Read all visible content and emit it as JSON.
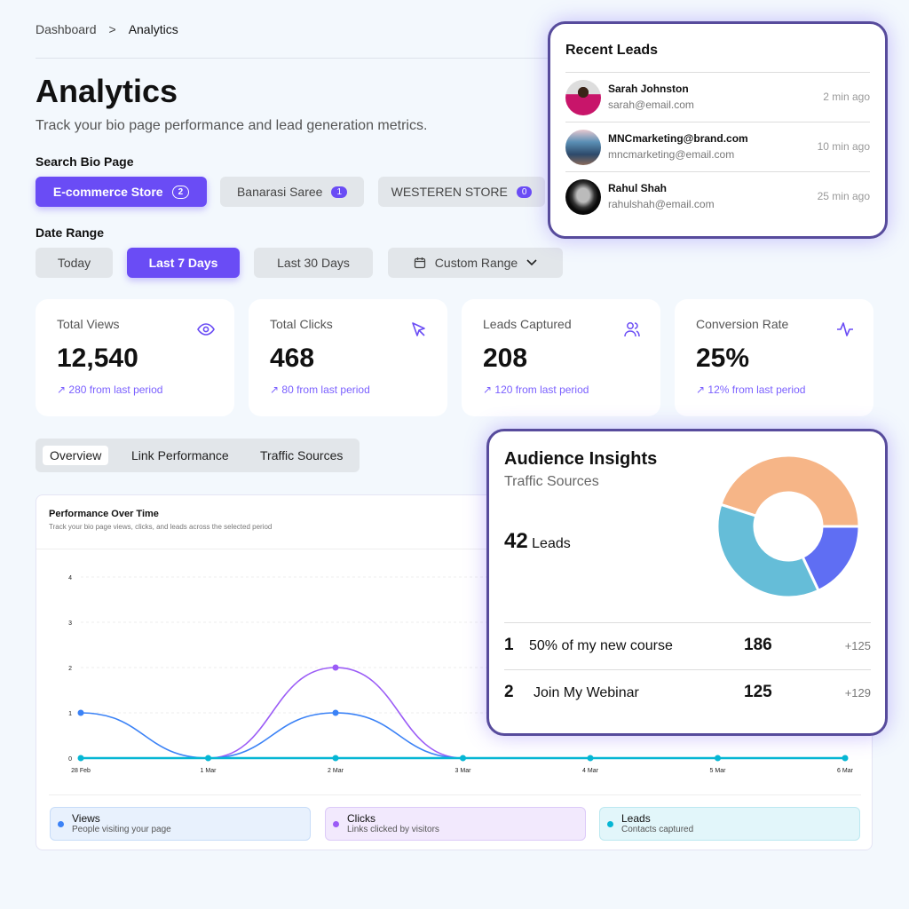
{
  "breadcrumb": {
    "parent": "Dashboard",
    "separator": ">",
    "current": "Analytics"
  },
  "header": {
    "title": "Analytics",
    "subtitle": "Track your bio page performance and lead generation metrics."
  },
  "bio_pages": {
    "label": "Search Bio Page",
    "items": [
      {
        "label": "E-commerce Store",
        "count": "2",
        "active": true
      },
      {
        "label": "Banarasi Saree",
        "count": "1"
      },
      {
        "label": "WESTEREN STORE",
        "count": "0"
      }
    ]
  },
  "date_range": {
    "label": "Date Range",
    "items": [
      "Today",
      "Last 7 Days",
      "Last 30 Days",
      "Custom Range"
    ],
    "active": "Last 7 Days"
  },
  "stats": [
    {
      "title": "Total Views",
      "value": "12,540",
      "delta": "280 from last period",
      "icon": "eye-icon"
    },
    {
      "title": "Total Clicks",
      "value": "468",
      "delta": "80 from last period",
      "icon": "cursor-icon"
    },
    {
      "title": "Leads Captured",
      "value": "208",
      "delta": "120 from last period",
      "icon": "users-icon"
    },
    {
      "title": "Conversion Rate",
      "value": "25%",
      "delta": "12% from last period",
      "icon": "activity-icon"
    }
  ],
  "tabs": [
    "Overview",
    "Link Performance",
    "Traffic Sources"
  ],
  "colors": {
    "accent": "#6a4cf5",
    "views": "#3b82f6",
    "clicks": "#9b5cf6",
    "leads": "#06b6d4",
    "card_border": "#574b9c"
  },
  "chart_data": {
    "type": "line",
    "title": "Performance Over Time",
    "subtitle": "Track your bio page views, clicks, and leads across the selected period",
    "categories": [
      "28 Feb",
      "1 Mar",
      "2 Mar",
      "3 Mar",
      "4 Mar",
      "5 Mar",
      "6 Mar"
    ],
    "yticks": [
      "0",
      "1",
      "2",
      "3",
      "4"
    ],
    "ylim": [
      0,
      4
    ],
    "grid": true,
    "legend": "bottom",
    "series": [
      {
        "name": "Views",
        "desc": "People visiting your page",
        "values": [
          1,
          0,
          1,
          0,
          0,
          0,
          0
        ]
      },
      {
        "name": "Clicks",
        "desc": "Links clicked by visitors",
        "values": [
          0,
          0,
          2,
          0,
          0,
          0,
          0
        ]
      },
      {
        "name": "Leads",
        "desc": "Contacts captured",
        "values": [
          0,
          0,
          0,
          0,
          0,
          0,
          0
        ]
      }
    ]
  },
  "recent_leads": {
    "title": "Recent Leads",
    "items": [
      {
        "name": "Sarah Johnston",
        "email": "sarah@email.com",
        "time": "2 min ago"
      },
      {
        "name": "MNCmarketing@brand.com",
        "email": "mncmarketing@email.com",
        "time": "10 min ago"
      },
      {
        "name": "Rahul Shah",
        "email": "rahulshah@email.com",
        "time": "25 min ago"
      }
    ]
  },
  "audience": {
    "title": "Audience Insights",
    "subtitle": "Traffic Sources",
    "leads_count": "42",
    "leads_label": "Leads",
    "donut": [
      {
        "value": 45,
        "color": "#f6b587"
      },
      {
        "value": 18,
        "color": "#5f6ef3"
      },
      {
        "value": 37,
        "color": "#65bdd8"
      }
    ],
    "rows": [
      {
        "rank": "1",
        "label": "50% of my new course",
        "count": "186",
        "delta": "+125"
      },
      {
        "rank": "2",
        "label": "Join My Webinar",
        "count": "125",
        "delta": "+129"
      }
    ]
  }
}
